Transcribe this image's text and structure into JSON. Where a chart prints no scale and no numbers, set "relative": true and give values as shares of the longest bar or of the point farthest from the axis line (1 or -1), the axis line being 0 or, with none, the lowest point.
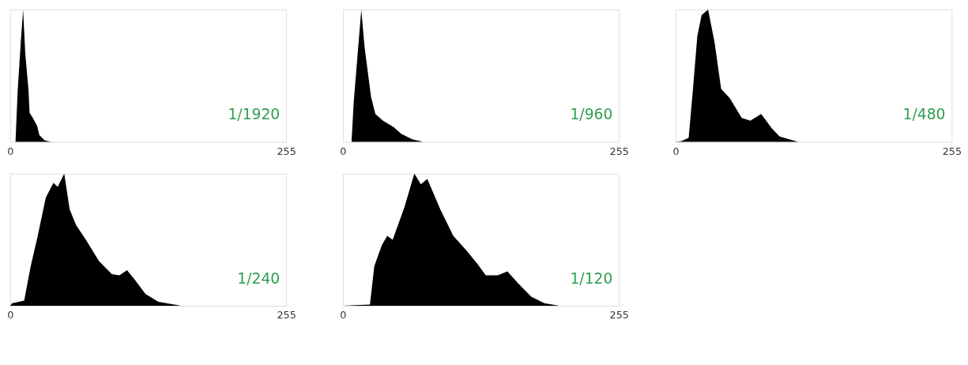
{
  "chart_data": [
    {
      "type": "area",
      "relative": true,
      "color": "#000000",
      "xlim": [
        0,
        255
      ],
      "xticks": [
        0,
        255
      ],
      "tick_labels": "x",
      "annotations": [
        "1/1920"
      ],
      "x": [
        0,
        5,
        7,
        10,
        12,
        14,
        17,
        18,
        21,
        25,
        27,
        32,
        38,
        255
      ],
      "values": [
        0,
        0,
        0.39,
        0.77,
        1,
        0.67,
        0.39,
        0.22,
        0.18,
        0.12,
        0.05,
        0.01,
        0,
        0
      ]
    },
    {
      "type": "area",
      "relative": true,
      "color": "#000000",
      "xlim": [
        0,
        255
      ],
      "xticks": [
        0,
        255
      ],
      "tick_labels": "x",
      "annotations": [
        "1/960"
      ],
      "x": [
        0,
        8,
        10,
        14,
        17,
        20,
        26,
        30,
        37,
        47,
        54,
        64,
        74,
        255
      ],
      "values": [
        0,
        0,
        0.3,
        0.7,
        1,
        0.72,
        0.34,
        0.21,
        0.16,
        0.11,
        0.06,
        0.02,
        0,
        0
      ]
    },
    {
      "type": "area",
      "relative": true,
      "color": "#000000",
      "xlim": [
        0,
        255
      ],
      "xticks": [
        0,
        255
      ],
      "tick_labels": "x",
      "annotations": [
        "1/480"
      ],
      "x": [
        0,
        5,
        12,
        16,
        20,
        24,
        30,
        36,
        42,
        50,
        61,
        69,
        79,
        89,
        96,
        113,
        255
      ],
      "values": [
        0,
        0.005,
        0.03,
        0.4,
        0.8,
        0.96,
        1,
        0.75,
        0.4,
        0.33,
        0.18,
        0.16,
        0.21,
        0.1,
        0.04,
        0,
        0
      ]
    },
    {
      "type": "area",
      "relative": true,
      "color": "#000000",
      "xlim": [
        0,
        255
      ],
      "xticks": [
        0,
        255
      ],
      "tick_labels": "x",
      "annotations": [
        "1/240"
      ],
      "x": [
        0,
        2,
        13,
        19,
        25,
        33,
        40,
        44,
        50,
        55,
        61,
        70,
        82,
        94,
        101,
        108,
        115,
        125,
        137,
        158,
        255
      ],
      "values": [
        0,
        0.02,
        0.04,
        0.3,
        0.51,
        0.82,
        0.93,
        0.9,
        1,
        0.73,
        0.61,
        0.5,
        0.34,
        0.24,
        0.23,
        0.27,
        0.2,
        0.09,
        0.03,
        0,
        0
      ]
    },
    {
      "type": "area",
      "relative": true,
      "color": "#000000",
      "xlim": [
        0,
        255
      ],
      "xticks": [
        0,
        255
      ],
      "tick_labels": "x",
      "annotations": [
        "1/120"
      ],
      "x": [
        0,
        11,
        25,
        29,
        36,
        41,
        46,
        57,
        66,
        72,
        78,
        90,
        102,
        114,
        125,
        132,
        143,
        152,
        162,
        174,
        186,
        200,
        255
      ],
      "values": [
        0,
        0.005,
        0.01,
        0.3,
        0.46,
        0.53,
        0.5,
        0.75,
        1,
        0.92,
        0.96,
        0.73,
        0.53,
        0.42,
        0.31,
        0.23,
        0.23,
        0.26,
        0.17,
        0.07,
        0.02,
        0,
        0
      ]
    }
  ]
}
